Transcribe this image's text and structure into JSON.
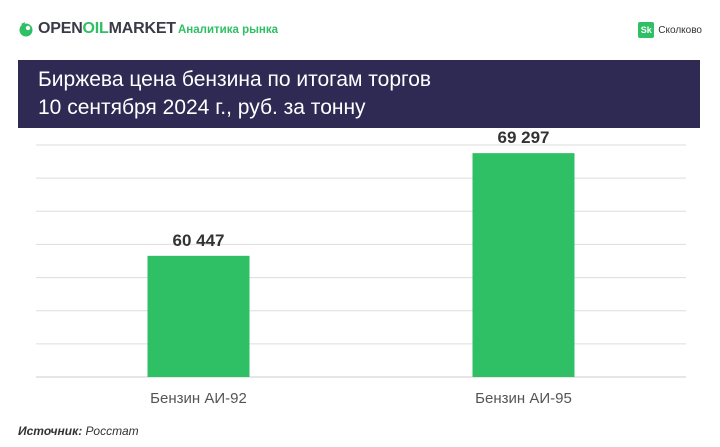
{
  "header": {
    "brand_part1": "OPEN",
    "brand_part2": "OIL",
    "brand_part3": "MARKET",
    "subtitle": "Аналитика рынка",
    "partner_badge": "Sk",
    "partner_name": "Сколково"
  },
  "colors": {
    "accent_green": "#2fbf64",
    "title_band": "#2f2a54",
    "grid": "#dddddd",
    "bar": "#2fbf64"
  },
  "icons": {
    "logo": "leaf-drop-icon"
  },
  "chart_data": {
    "type": "bar",
    "title_lines": [
      "Биржева цена бензина по итогам торгов",
      "10 сентября 2024 г., руб. за тонну"
    ],
    "categories": [
      "Бензин АИ-92",
      "Бензин АИ-95"
    ],
    "values": [
      60447,
      69297
    ],
    "value_labels": [
      "60 447",
      "69 297"
    ],
    "ylim": [
      50000,
      70000
    ],
    "grid": true,
    "legend": "none"
  },
  "source": {
    "label": "Источник:",
    "value": "Росстат"
  }
}
